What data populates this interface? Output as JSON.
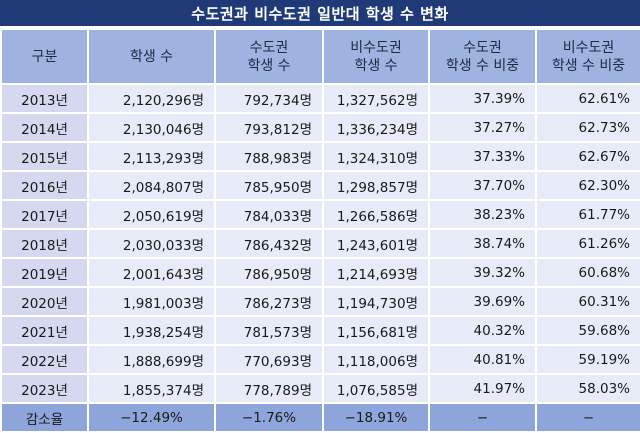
{
  "title": "수도권과 비수도권 일반대 학생 수 변화",
  "headers": [
    {
      "line1": "구분",
      "line2": ""
    },
    {
      "line1": "학생 수",
      "line2": ""
    },
    {
      "line1": "수도권",
      "line2": "학생 수"
    },
    {
      "line1": "비수도권",
      "line2": "학생 수"
    },
    {
      "line1": "수도권",
      "line2": "학생 수 비중"
    },
    {
      "line1": "비수도권",
      "line2": "학생 수 비중"
    }
  ],
  "rows": [
    {
      "year": "2013년",
      "total": "2,120,296명",
      "capital": "792,734명",
      "non_capital": "1,327,562명",
      "capital_share": "37.39%",
      "non_capital_share": "62.61%"
    },
    {
      "year": "2014년",
      "total": "2,130,046명",
      "capital": "793,812명",
      "non_capital": "1,336,234명",
      "capital_share": "37.27%",
      "non_capital_share": "62.73%"
    },
    {
      "year": "2015년",
      "total": "2,113,293명",
      "capital": "788,983명",
      "non_capital": "1,324,310명",
      "capital_share": "37.33%",
      "non_capital_share": "62.67%"
    },
    {
      "year": "2016년",
      "total": "2,084,807명",
      "capital": "785,950명",
      "non_capital": "1,298,857명",
      "capital_share": "37.70%",
      "non_capital_share": "62.30%"
    },
    {
      "year": "2017년",
      "total": "2,050,619명",
      "capital": "784,033명",
      "non_capital": "1,266,586명",
      "capital_share": "38.23%",
      "non_capital_share": "61.77%"
    },
    {
      "year": "2018년",
      "total": "2,030,033명",
      "capital": "786,432명",
      "non_capital": "1,243,601명",
      "capital_share": "38.74%",
      "non_capital_share": "61.26%"
    },
    {
      "year": "2019년",
      "total": "2,001,643명",
      "capital": "786,950명",
      "non_capital": "1,214,693명",
      "capital_share": "39.32%",
      "non_capital_share": "60.68%"
    },
    {
      "year": "2020년",
      "total": "1,981,003명",
      "capital": "786,273명",
      "non_capital": "1,194,730명",
      "capital_share": "39.69%",
      "non_capital_share": "60.31%"
    },
    {
      "year": "2021년",
      "total": "1,938,254명",
      "capital": "781,573명",
      "non_capital": "1,156,681명",
      "capital_share": "40.32%",
      "non_capital_share": "59.68%"
    },
    {
      "year": "2022년",
      "total": "1,888,699명",
      "capital": "770,693명",
      "non_capital": "1,118,006명",
      "capital_share": "40.81%",
      "non_capital_share": "59.19%"
    },
    {
      "year": "2023년",
      "total": "1,855,374명",
      "capital": "778,789명",
      "non_capital": "1,076,585명",
      "capital_share": "41.97%",
      "non_capital_share": "58.03%"
    }
  ],
  "summary": {
    "label": "감소율",
    "total": "−12.49%",
    "capital": "−1.76%",
    "non_capital": "−18.91%",
    "capital_share": "−",
    "non_capital_share": "−"
  },
  "colors": {
    "title_bg": "#203a78",
    "header_bg": "#9fb3e0",
    "year_bg": "#d5d8ee",
    "cell_bg": "#e6ebf7",
    "summary_bg": "#8da5db"
  }
}
